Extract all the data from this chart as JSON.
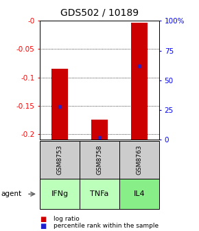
{
  "title": "GDS502 / 10189",
  "samples": [
    "GSM8753",
    "GSM8758",
    "GSM8763"
  ],
  "agents": [
    "IFNg",
    "TNFa",
    "IL4"
  ],
  "log_ratios": [
    -0.085,
    -0.175,
    -0.003
  ],
  "percentile_ranks": [
    28,
    2,
    62
  ],
  "ylim_left": [
    -0.21,
    0.0
  ],
  "ylim_right": [
    0,
    100
  ],
  "yticks_left": [
    0.0,
    -0.05,
    -0.1,
    -0.15,
    -0.2
  ],
  "yticks_right": [
    0,
    25,
    50,
    75,
    100
  ],
  "bar_color": "#cc0000",
  "dot_color": "#2222cc",
  "agent_colors": [
    "#bbffbb",
    "#bbffbb",
    "#88ee88"
  ],
  "sample_bg": "#cccccc",
  "title_fontsize": 10,
  "bar_width": 0.4
}
